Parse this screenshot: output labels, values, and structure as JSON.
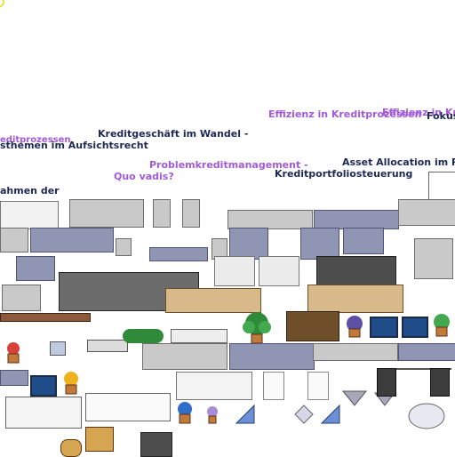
{
  "labels": {
    "l1": "editprozessen",
    "l2": "sthemen im Aufsichtsrecht",
    "l3": "Kreditgeschäft im Wandel -",
    "l4": "Effizienz in Kreditprozessen",
    "l5": "Effizienz in Kre",
    "l6": "Fokus",
    "l7": "Problemkreditmanagement -",
    "l8": "Quo vadis?",
    "l9": "Kreditportfoliosteuerung",
    "l10": "Asset Allocation im Ra",
    "l11": "ahmen der"
  },
  "colors": {
    "navy": "#1e2a55",
    "purple": "#a35ad8",
    "sofa_gray": "#c9c9c9",
    "sofa_blue": "#8f95b3",
    "wood": "#d8b98a"
  }
}
